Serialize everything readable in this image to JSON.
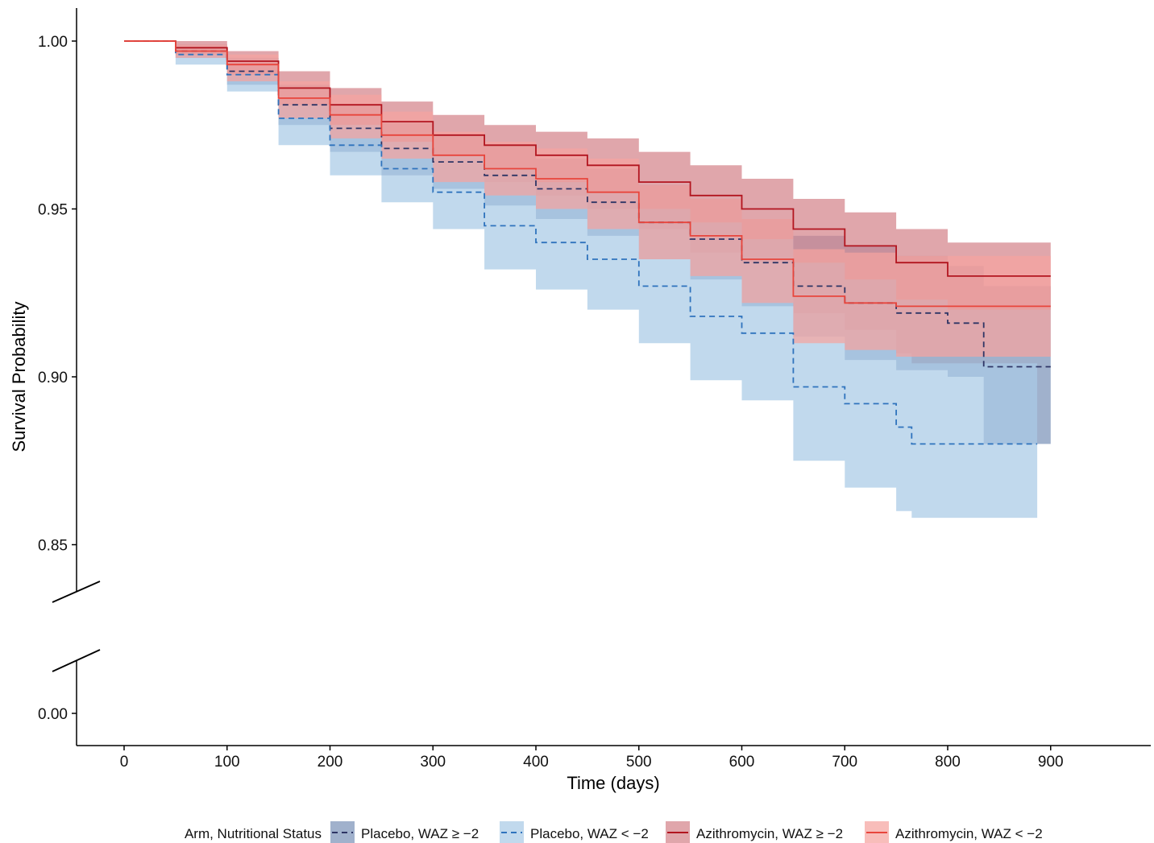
{
  "chart_data": {
    "type": "line",
    "subtype": "kaplan-meier survival curves with confidence bands",
    "title": "",
    "xlabel": "Time (days)",
    "ylabel": "Survival Probability",
    "xlim": [
      -47,
      995
    ],
    "ylim": [
      0.0,
      1.0
    ],
    "y_axis_break": "between 0.00 and 0.85",
    "x_ticks": [
      0,
      100,
      200,
      300,
      400,
      500,
      600,
      700,
      800,
      900
    ],
    "x_tick_labels": [
      "0",
      "100",
      "200",
      "300",
      "400",
      "500",
      "600",
      "700",
      "800",
      "900"
    ],
    "y_ticks": [
      1.0,
      0.95,
      0.9,
      0.85,
      0.0
    ],
    "y_tick_labels": [
      "1.00",
      "0.95",
      "0.90",
      "0.85",
      "0.00"
    ],
    "grid": false,
    "legend": {
      "title": "Arm, Nutritional Status",
      "placement": "bottom"
    },
    "series": [
      {
        "name": "Placebo, WAZ ≥ −2",
        "color": "#2e3565",
        "band_color": "#7b93b8",
        "line_style": "dashed",
        "x": [
          0,
          50,
          100,
          150,
          200,
          250,
          300,
          350,
          400,
          450,
          500,
          550,
          600,
          650,
          700,
          750,
          800,
          835,
          900
        ],
        "y": [
          1.0,
          0.997,
          0.991,
          0.981,
          0.974,
          0.968,
          0.964,
          0.96,
          0.956,
          0.952,
          0.946,
          0.941,
          0.934,
          0.927,
          0.922,
          0.919,
          0.916,
          0.903,
          0.903
        ],
        "lower": [
          1.0,
          0.995,
          0.987,
          0.975,
          0.967,
          0.96,
          0.956,
          0.951,
          0.947,
          0.942,
          0.935,
          0.929,
          0.921,
          0.912,
          0.905,
          0.902,
          0.9,
          0.88,
          0.88
        ],
        "upper": [
          1.0,
          0.999,
          0.995,
          0.987,
          0.981,
          0.976,
          0.972,
          0.969,
          0.965,
          0.962,
          0.957,
          0.953,
          0.947,
          0.942,
          0.939,
          0.936,
          0.933,
          0.927,
          0.927
        ]
      },
      {
        "name": "Placebo, WAZ < −2",
        "color": "#2f73bd",
        "band_color": "#a9cbe6",
        "line_style": "dashed",
        "x": [
          0,
          50,
          100,
          150,
          200,
          250,
          300,
          350,
          400,
          450,
          500,
          550,
          600,
          650,
          700,
          750,
          765,
          800,
          887
        ],
        "y": [
          1.0,
          0.996,
          0.99,
          0.977,
          0.969,
          0.962,
          0.955,
          0.945,
          0.94,
          0.935,
          0.927,
          0.918,
          0.913,
          0.897,
          0.892,
          0.885,
          0.88,
          0.88,
          0.88
        ],
        "lower": [
          1.0,
          0.993,
          0.985,
          0.969,
          0.96,
          0.952,
          0.944,
          0.932,
          0.926,
          0.92,
          0.91,
          0.899,
          0.893,
          0.875,
          0.867,
          0.86,
          0.858,
          0.858,
          0.858
        ],
        "upper": [
          1.0,
          0.999,
          0.995,
          0.985,
          0.978,
          0.972,
          0.966,
          0.958,
          0.954,
          0.95,
          0.944,
          0.937,
          0.934,
          0.919,
          0.914,
          0.907,
          0.904,
          0.904,
          0.904
        ]
      },
      {
        "name": "Azithromycin, WAZ ≥ −2",
        "color": "#b2151f",
        "band_color": "#d4848a",
        "line_style": "solid",
        "x": [
          0,
          50,
          100,
          150,
          200,
          250,
          300,
          350,
          400,
          450,
          500,
          550,
          600,
          650,
          700,
          750,
          800,
          900
        ],
        "y": [
          1.0,
          0.998,
          0.994,
          0.986,
          0.981,
          0.976,
          0.972,
          0.969,
          0.966,
          0.963,
          0.958,
          0.954,
          0.95,
          0.944,
          0.939,
          0.934,
          0.93,
          0.93
        ],
        "lower": [
          1.0,
          0.996,
          0.99,
          0.981,
          0.975,
          0.97,
          0.966,
          0.962,
          0.958,
          0.955,
          0.95,
          0.946,
          0.941,
          0.934,
          0.929,
          0.923,
          0.92,
          0.92
        ],
        "upper": [
          1.0,
          1.0,
          0.997,
          0.991,
          0.986,
          0.982,
          0.978,
          0.975,
          0.973,
          0.971,
          0.967,
          0.963,
          0.959,
          0.953,
          0.949,
          0.944,
          0.94,
          0.94
        ]
      },
      {
        "name": "Azithromycin, WAZ < −2",
        "color": "#e8453c",
        "band_color": "#f5a49f",
        "line_style": "solid",
        "x": [
          0,
          50,
          100,
          150,
          200,
          250,
          300,
          350,
          400,
          450,
          500,
          550,
          600,
          650,
          700,
          750,
          800,
          900
        ],
        "y": [
          1.0,
          0.997,
          0.993,
          0.983,
          0.978,
          0.972,
          0.966,
          0.962,
          0.959,
          0.955,
          0.946,
          0.942,
          0.935,
          0.924,
          0.922,
          0.921,
          0.921,
          0.921
        ],
        "lower": [
          1.0,
          0.995,
          0.988,
          0.977,
          0.971,
          0.965,
          0.958,
          0.954,
          0.95,
          0.944,
          0.935,
          0.93,
          0.922,
          0.91,
          0.908,
          0.906,
          0.906,
          0.906
        ],
        "upper": [
          1.0,
          0.999,
          0.996,
          0.988,
          0.984,
          0.979,
          0.973,
          0.97,
          0.968,
          0.965,
          0.957,
          0.953,
          0.947,
          0.938,
          0.937,
          0.936,
          0.936,
          0.936
        ]
      }
    ]
  }
}
